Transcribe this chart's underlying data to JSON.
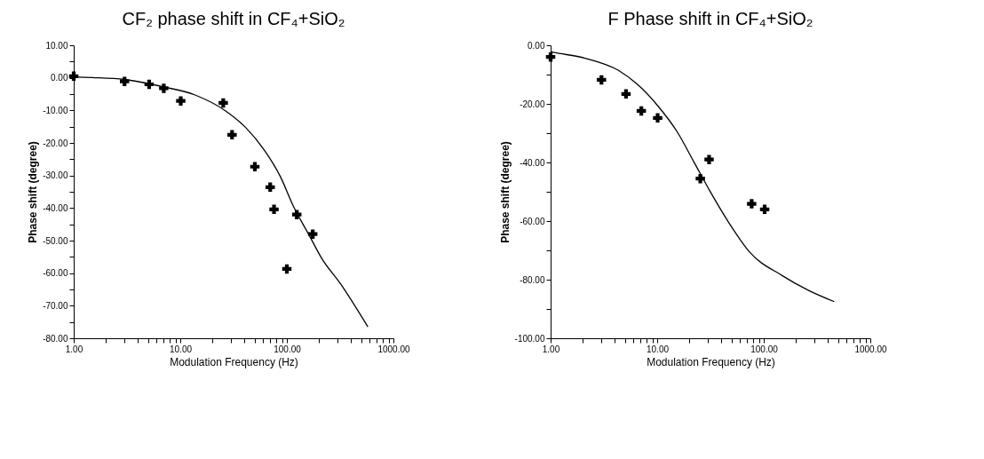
{
  "chart_data": [
    {
      "type": "scatter",
      "title": "CF₂ phase shift in CF₄+SiO₂",
      "xlabel": "Modulation Frequency (Hz)",
      "ylabel": "Phase shift (degree)",
      "log": "x",
      "grid": false,
      "xlim": [
        1,
        1000
      ],
      "ylim": [
        -80,
        10
      ],
      "xticks": [
        {
          "value": 1,
          "label": "1.00"
        },
        {
          "value": 2,
          "label": null
        },
        {
          "value": 3,
          "label": null
        },
        {
          "value": 4,
          "label": null
        },
        {
          "value": 5,
          "label": null
        },
        {
          "value": 6,
          "label": null
        },
        {
          "value": 7,
          "label": null
        },
        {
          "value": 8,
          "label": null
        },
        {
          "value": 9,
          "label": null
        },
        {
          "value": 10,
          "label": "10.00"
        },
        {
          "value": 20,
          "label": null
        },
        {
          "value": 30,
          "label": null
        },
        {
          "value": 40,
          "label": null
        },
        {
          "value": 50,
          "label": null
        },
        {
          "value": 60,
          "label": null
        },
        {
          "value": 70,
          "label": null
        },
        {
          "value": 80,
          "label": null
        },
        {
          "value": 90,
          "label": null
        },
        {
          "value": 100,
          "label": "100.00"
        },
        {
          "value": 200,
          "label": null
        },
        {
          "value": 300,
          "label": null
        },
        {
          "value": 400,
          "label": null
        },
        {
          "value": 500,
          "label": null
        },
        {
          "value": 600,
          "label": null
        },
        {
          "value": 700,
          "label": null
        },
        {
          "value": 800,
          "label": null
        },
        {
          "value": 900,
          "label": null
        },
        {
          "value": 1000,
          "label": "1000.00"
        }
      ],
      "yticks": [
        {
          "value": 10,
          "label": "10.00"
        },
        {
          "value": 5,
          "label": null
        },
        {
          "value": 0,
          "label": "0.00"
        },
        {
          "value": -5,
          "label": null
        },
        {
          "value": -10,
          "label": "-10.00"
        },
        {
          "value": -15,
          "label": null
        },
        {
          "value": -20,
          "label": "-20.00"
        },
        {
          "value": -25,
          "label": null
        },
        {
          "value": -30,
          "label": "-30.00"
        },
        {
          "value": -35,
          "label": null
        },
        {
          "value": -40,
          "label": "-40.00"
        },
        {
          "value": -45,
          "label": null
        },
        {
          "value": -50,
          "label": "-50.00"
        },
        {
          "value": -55,
          "label": null
        },
        {
          "value": -60,
          "label": "-60.00"
        },
        {
          "value": -65,
          "label": null
        },
        {
          "value": -70,
          "label": "-70.00"
        },
        {
          "value": -75,
          "label": null
        },
        {
          "value": -80,
          "label": "-80.00"
        }
      ],
      "series": [
        {
          "type": "line",
          "color": "#000000",
          "x": [
            1,
            1.5,
            3,
            7,
            13.6,
            27,
            40.9,
            61.7,
            87.1,
            114.6,
            161,
            212,
            321,
            576
          ],
          "values": [
            0.3,
            0.1,
            -0.5,
            -2.8,
            -5.2,
            -10.3,
            -15.2,
            -22.3,
            -30.4,
            -39.3,
            -48.2,
            -55.4,
            -63.4,
            -76.5
          ]
        },
        {
          "marker": "cross",
          "color": "#000000",
          "x": [
            1,
            3,
            5.1,
            7,
            10.1,
            25.3,
            30.6,
            50.1,
            69.8,
            75.8,
            100,
            124,
            175
          ],
          "values": [
            0.5,
            -1.1,
            -2,
            -3.2,
            -7.1,
            -7.7,
            -17.5,
            -27.3,
            -33.6,
            -40.4,
            -58.7,
            -42,
            -48
          ]
        }
      ]
    },
    {
      "type": "scatter",
      "title": "F Phase shift in CF₄+SiO₂",
      "xlabel": "Modulation Frequency (Hz)",
      "ylabel": "Phase shift (degree)",
      "log": "x",
      "grid": false,
      "xlim": [
        1,
        1000
      ],
      "ylim": [
        -100,
        0
      ],
      "xticks": [
        {
          "value": 1,
          "label": "1.00"
        },
        {
          "value": 2,
          "label": null
        },
        {
          "value": 3,
          "label": null
        },
        {
          "value": 4,
          "label": null
        },
        {
          "value": 5,
          "label": null
        },
        {
          "value": 6,
          "label": null
        },
        {
          "value": 7,
          "label": null
        },
        {
          "value": 8,
          "label": null
        },
        {
          "value": 9,
          "label": null
        },
        {
          "value": 10,
          "label": "10.00"
        },
        {
          "value": 20,
          "label": null
        },
        {
          "value": 30,
          "label": null
        },
        {
          "value": 40,
          "label": null
        },
        {
          "value": 50,
          "label": null
        },
        {
          "value": 60,
          "label": null
        },
        {
          "value": 70,
          "label": null
        },
        {
          "value": 80,
          "label": null
        },
        {
          "value": 90,
          "label": null
        },
        {
          "value": 100,
          "label": "100.00"
        },
        {
          "value": 200,
          "label": null
        },
        {
          "value": 300,
          "label": null
        },
        {
          "value": 400,
          "label": null
        },
        {
          "value": 500,
          "label": null
        },
        {
          "value": 600,
          "label": null
        },
        {
          "value": 700,
          "label": null
        },
        {
          "value": 800,
          "label": null
        },
        {
          "value": 900,
          "label": null
        },
        {
          "value": 1000,
          "label": "1000.00"
        }
      ],
      "yticks": [
        {
          "value": 0,
          "label": "0.00"
        },
        {
          "value": -10,
          "label": null
        },
        {
          "value": -20,
          "label": "-20.00"
        },
        {
          "value": -30,
          "label": null
        },
        {
          "value": -40,
          "label": "-40.00"
        },
        {
          "value": -50,
          "label": null
        },
        {
          "value": -60,
          "label": "-60.00"
        },
        {
          "value": -70,
          "label": null
        },
        {
          "value": -80,
          "label": "-80.00"
        },
        {
          "value": -90,
          "label": null
        },
        {
          "value": -100,
          "label": "-100.00"
        }
      ],
      "series": [
        {
          "type": "line",
          "color": "#000000",
          "x": [
            1,
            1.06,
            2.1,
            4.3,
            6.6,
            10.1,
            15.5,
            22.1,
            31.4,
            47.9,
            73.3,
            148.6,
            261,
            458
          ],
          "values": [
            -2.2,
            -2.4,
            -4.4,
            -8.5,
            -13.5,
            -20.6,
            -29.7,
            -39.8,
            -49.9,
            -61,
            -70.5,
            -78.6,
            -83.6,
            -87.5
          ]
        },
        {
          "marker": "cross",
          "color": "#000000",
          "x": [
            1,
            3,
            5.1,
            7.1,
            10.1,
            25.4,
            30.7,
            77,
            102
          ],
          "values": [
            -4,
            -11.8,
            -16.6,
            -22.4,
            -24.8,
            -45.5,
            -39,
            -54.1,
            -56
          ]
        }
      ]
    }
  ]
}
